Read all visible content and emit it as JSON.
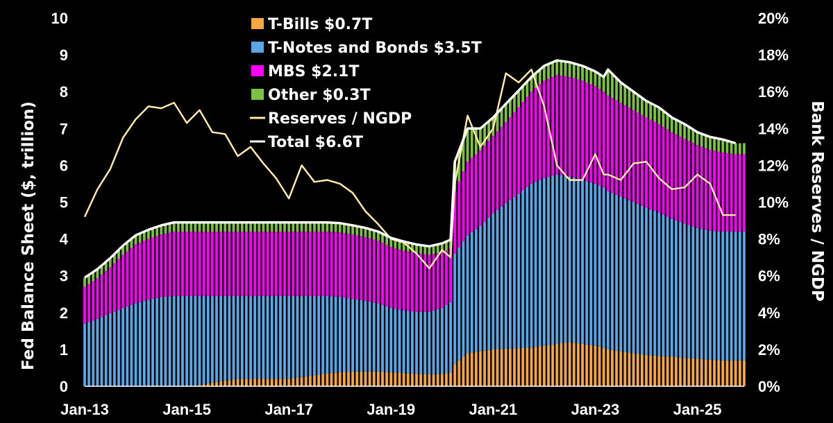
{
  "chart_data": {
    "type": "area",
    "title": "",
    "ylabel": "Fed Balance Sheet ($, trillion)",
    "y2label": "Bank Reserves / NGDP",
    "ylim": [
      0,
      10
    ],
    "y2lim": [
      0,
      20
    ],
    "xlim": [
      "2013-01",
      "2025-12"
    ],
    "yticks": [
      "0",
      "1",
      "2",
      "3",
      "4",
      "5",
      "6",
      "7",
      "8",
      "9",
      "10"
    ],
    "y2ticks": [
      "0%",
      "2%",
      "4%",
      "6%",
      "8%",
      "10%",
      "12%",
      "14%",
      "16%",
      "18%",
      "20%"
    ],
    "xticks": [
      "Jan-13",
      "Jan-15",
      "Jan-17",
      "Jan-19",
      "Jan-21",
      "Jan-23",
      "Jan-25"
    ],
    "grid": false,
    "legend_position": "top-center",
    "x": [
      "2013-01",
      "2013-04",
      "2013-07",
      "2013-10",
      "2014-01",
      "2014-04",
      "2014-07",
      "2014-10",
      "2015-01",
      "2015-04",
      "2015-07",
      "2015-10",
      "2016-01",
      "2016-04",
      "2016-07",
      "2016-10",
      "2017-01",
      "2017-04",
      "2017-07",
      "2017-10",
      "2018-01",
      "2018-04",
      "2018-07",
      "2018-10",
      "2019-01",
      "2019-04",
      "2019-07",
      "2019-10",
      "2020-01",
      "2020-03",
      "2020-04",
      "2020-07",
      "2020-10",
      "2021-01",
      "2021-04",
      "2021-07",
      "2021-10",
      "2022-01",
      "2022-04",
      "2022-07",
      "2022-10",
      "2023-01",
      "2023-03",
      "2023-04",
      "2023-07",
      "2023-10",
      "2024-01",
      "2024-04",
      "2024-07",
      "2024-10",
      "2025-01",
      "2025-04",
      "2025-07",
      "2025-10"
    ],
    "series": [
      {
        "name": "T-Bills $0.7T",
        "kind": "stacked-area",
        "color": "#f4a742",
        "values": [
          0,
          0,
          0,
          0,
          0,
          0,
          0,
          0,
          0,
          0.03,
          0.1,
          0.15,
          0.2,
          0.2,
          0.2,
          0.2,
          0.2,
          0.25,
          0.3,
          0.35,
          0.38,
          0.4,
          0.4,
          0.4,
          0.38,
          0.36,
          0.34,
          0.32,
          0.33,
          0.38,
          0.6,
          0.9,
          0.95,
          1.0,
          1.02,
          1.03,
          1.05,
          1.1,
          1.15,
          1.2,
          1.15,
          1.1,
          1.05,
          1.0,
          0.95,
          0.9,
          0.85,
          0.82,
          0.8,
          0.77,
          0.75,
          0.72,
          0.7,
          0.7
        ]
      },
      {
        "name": "T-Notes and Bonds $3.5T",
        "kind": "stacked-area",
        "color": "#5aa7e6",
        "values": [
          1.7,
          1.83,
          1.98,
          2.12,
          2.25,
          2.35,
          2.42,
          2.45,
          2.45,
          2.42,
          2.35,
          2.3,
          2.25,
          2.25,
          2.25,
          2.25,
          2.25,
          2.2,
          2.15,
          2.1,
          2.05,
          1.97,
          1.92,
          1.85,
          1.75,
          1.7,
          1.68,
          1.7,
          1.8,
          1.9,
          3.0,
          3.2,
          3.4,
          3.7,
          3.95,
          4.2,
          4.45,
          4.55,
          4.6,
          4.5,
          4.45,
          4.4,
          4.35,
          4.3,
          4.2,
          4.1,
          4.0,
          3.9,
          3.75,
          3.65,
          3.55,
          3.5,
          3.5,
          3.5
        ]
      },
      {
        "name": "MBS $2.1T",
        "kind": "stacked-area",
        "color": "#ff00ff",
        "values": [
          1.0,
          1.1,
          1.25,
          1.45,
          1.6,
          1.65,
          1.7,
          1.75,
          1.75,
          1.75,
          1.75,
          1.75,
          1.75,
          1.75,
          1.75,
          1.75,
          1.75,
          1.75,
          1.75,
          1.75,
          1.75,
          1.75,
          1.73,
          1.7,
          1.65,
          1.62,
          1.6,
          1.55,
          1.5,
          1.45,
          1.7,
          2.0,
          2.05,
          2.1,
          2.2,
          2.35,
          2.5,
          2.65,
          2.7,
          2.7,
          2.7,
          2.65,
          2.6,
          2.6,
          2.55,
          2.5,
          2.45,
          2.4,
          2.35,
          2.3,
          2.25,
          2.2,
          2.15,
          2.1
        ]
      },
      {
        "name": "Other $0.3T",
        "kind": "stacked-area",
        "color": "#7dc142",
        "values": [
          0.25,
          0.25,
          0.25,
          0.25,
          0.25,
          0.25,
          0.25,
          0.25,
          0.25,
          0.25,
          0.25,
          0.25,
          0.25,
          0.25,
          0.25,
          0.25,
          0.25,
          0.25,
          0.25,
          0.25,
          0.25,
          0.25,
          0.25,
          0.25,
          0.25,
          0.25,
          0.23,
          0.23,
          0.25,
          0.25,
          0.8,
          0.9,
          0.6,
          0.5,
          0.5,
          0.45,
          0.4,
          0.4,
          0.4,
          0.4,
          0.4,
          0.4,
          0.4,
          0.7,
          0.55,
          0.5,
          0.45,
          0.45,
          0.4,
          0.4,
          0.35,
          0.35,
          0.35,
          0.3
        ]
      },
      {
        "name": "Reserves / NGDP",
        "kind": "line",
        "axis": "right",
        "color": "#ffe9a8",
        "values": [
          9.2,
          10.7,
          11.8,
          13.5,
          14.5,
          15.2,
          15.1,
          15.4,
          14.3,
          15.0,
          13.8,
          13.7,
          12.5,
          13.0,
          12.1,
          11.3,
          10.2,
          12.0,
          11.1,
          11.2,
          11.0,
          10.5,
          9.5,
          8.8,
          8.0,
          7.8,
          7.2,
          6.4,
          7.4,
          7.0,
          11.0,
          14.7,
          13.0,
          14.0,
          17.0,
          16.5,
          17.2,
          15.2,
          12.0,
          11.2,
          11.2,
          12.6,
          11.5,
          11.5,
          11.2,
          12.1,
          12.2,
          11.3,
          10.7,
          10.8,
          11.5,
          11.0,
          9.3,
          9.3
        ]
      },
      {
        "name": "Total $6.6T",
        "kind": "line",
        "axis": "left",
        "color": "#ffffff",
        "values": [
          2.95,
          3.18,
          3.48,
          3.82,
          4.1,
          4.25,
          4.37,
          4.45,
          4.45,
          4.45,
          4.45,
          4.45,
          4.45,
          4.45,
          4.45,
          4.45,
          4.45,
          4.45,
          4.45,
          4.45,
          4.43,
          4.37,
          4.3,
          4.2,
          4.03,
          3.93,
          3.85,
          3.8,
          3.88,
          3.98,
          6.1,
          7.0,
          7.0,
          7.3,
          7.67,
          8.03,
          8.4,
          8.7,
          8.85,
          8.8,
          8.7,
          8.55,
          8.4,
          8.6,
          8.25,
          8.0,
          7.75,
          7.57,
          7.3,
          7.12,
          6.9,
          6.77,
          6.7,
          6.6
        ]
      }
    ]
  }
}
